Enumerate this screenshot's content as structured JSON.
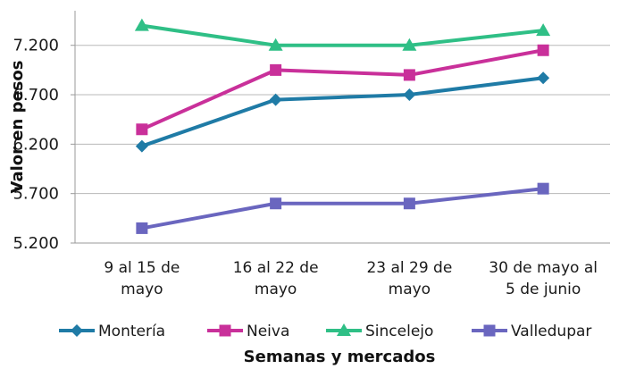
{
  "chart_data": {
    "type": "line",
    "title": "",
    "xlabel": "Semanas y mercados",
    "ylabel": "Valor en pesos",
    "categories": [
      [
        "9 al 15 de",
        "mayo"
      ],
      [
        "16 al 22 de",
        "mayo"
      ],
      [
        "23 al 29 de",
        "mayo"
      ],
      [
        "30 de mayo al",
        "5 de junio"
      ]
    ],
    "y_ticks": [
      "5.200",
      "5.700",
      "6.200",
      "6.700",
      "7.200"
    ],
    "y_tick_values": [
      5200,
      5700,
      6200,
      6700,
      7200
    ],
    "ylim": [
      5200,
      7550
    ],
    "grid": true,
    "legend_position": "bottom",
    "series": [
      {
        "name": "Montería",
        "color": "#1f7ba6",
        "marker": "diamond",
        "values": [
          6180,
          6650,
          6700,
          6870
        ]
      },
      {
        "name": "Neiva",
        "color": "#c9309a",
        "marker": "square",
        "values": [
          6350,
          6950,
          6900,
          7150
        ]
      },
      {
        "name": "Sincelejo",
        "color": "#2fbf86",
        "marker": "triangle",
        "values": [
          7400,
          7200,
          7200,
          7350
        ]
      },
      {
        "name": "Valledupar",
        "color": "#6a66bf",
        "marker": "square",
        "values": [
          5350,
          5600,
          5600,
          5750
        ]
      }
    ]
  }
}
